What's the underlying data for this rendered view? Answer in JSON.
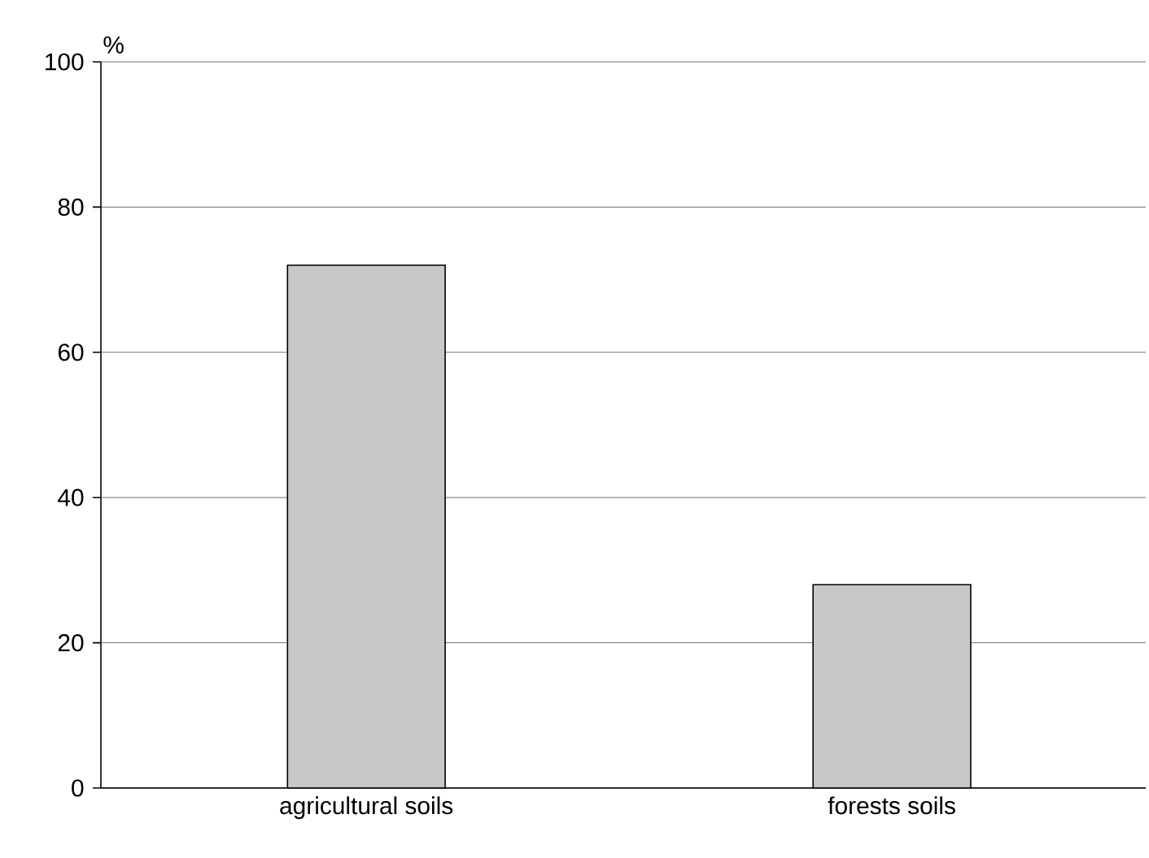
{
  "chart_data": {
    "type": "bar",
    "ylabel": "%",
    "categories": [
      "agricultural soils",
      "forests soils"
    ],
    "values": [
      72,
      28
    ],
    "colors": [
      "#c8c8c8",
      "#c8c8c8"
    ],
    "ylim": [
      0,
      100
    ],
    "yticks": [
      0,
      20,
      40,
      60,
      80,
      100
    ],
    "grid": "y"
  }
}
